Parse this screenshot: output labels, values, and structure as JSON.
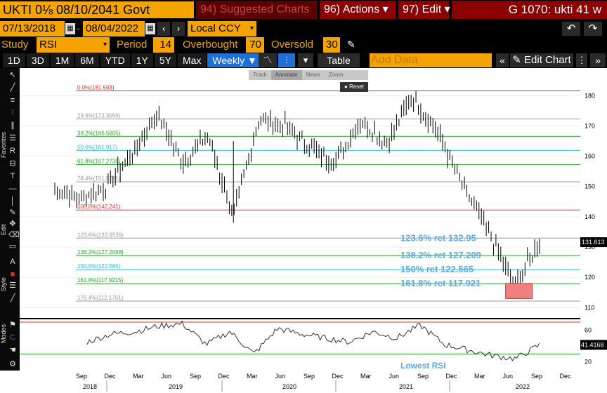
{
  "header": {
    "security": "UKTI 0⅛ 08/10/2041 Govt",
    "suggested_num": "94)",
    "suggested_label": "Suggested Charts",
    "actions_num": "96)",
    "actions_label": "Actions ▾",
    "edit_num": "97)",
    "edit_label": "Edit ▾",
    "chart_id": "G 1070: ukti 41 w"
  },
  "dates": {
    "start": "07/13/2018",
    "end": "08/04/2022",
    "currency": "Local CCY"
  },
  "study": {
    "label": "Study",
    "value": "RSI",
    "period_label": "Period",
    "period": "14",
    "overbought_label": "Overbought",
    "overbought": "70",
    "oversold_label": "Oversold",
    "oversold": "30"
  },
  "timeframes": [
    "1D",
    "3D",
    "1M",
    "6M",
    "YTD",
    "1Y",
    "5Y",
    "Max"
  ],
  "frequency": "Weekly ▼",
  "table_label": "Table",
  "add_data_placeholder": "Add Data",
  "edit_chart_label": "Edit Chart",
  "chart_toolbar": {
    "track": "Track",
    "annotate": "Annotate",
    "news": "News",
    "zoom": "Zoom",
    "reset": "Reset"
  },
  "left_toolbar": {
    "favorites": "Favorites",
    "edit": "Edit",
    "style": "Style",
    "modes": "Modes"
  },
  "fib_labels": [
    {
      "text": "0.0%(181.593)",
      "value": 181.593,
      "color": "#e03030"
    },
    {
      "text": "23.6%(172.3059)",
      "value": 172.3059,
      "color": "#999999"
    },
    {
      "text": "38.2%(166.5605)",
      "value": 166.5605,
      "color": "#22aa22"
    },
    {
      "text": "50.0%(161.917)",
      "value": 161.917,
      "color": "#22bbdd"
    },
    {
      "text": "61.8%(157.2735)",
      "value": 157.2735,
      "color": "#22aa22"
    },
    {
      "text": "76.4%(151.5281)",
      "value": 151.5281,
      "color": "#999999"
    },
    {
      "text": "100.0%(142.241)",
      "value": 142.241,
      "color": "#e03030"
    },
    {
      "text": "123.6%(132.9539)",
      "value": 132.9539,
      "color": "#999999"
    },
    {
      "text": "138.2%(127.2088)",
      "value": 127.2088,
      "color": "#22aa22"
    },
    {
      "text": "150.0%(122.565)",
      "value": 122.565,
      "color": "#22bbdd"
    },
    {
      "text": "161.8%(117.9215)",
      "value": 117.9215,
      "color": "#22aa22"
    },
    {
      "text": "176.4%(112.1761)",
      "value": 112.1761,
      "color": "#999999"
    }
  ],
  "annotations": [
    {
      "text": "123.6% ret 132.95",
      "value": 132.95
    },
    {
      "text": "138.2% ret 127.209",
      "value": 127.209
    },
    {
      "text": "150% ret 122.565",
      "value": 122.565
    },
    {
      "text": "161.8% ret 117.921",
      "value": 117.921
    }
  ],
  "lowest_rsi_label": "Lowest RSI",
  "price_axis": {
    "ticks": [
      "180",
      "170",
      "160",
      "150",
      "140",
      "130",
      "120",
      "110"
    ],
    "last": "131.613"
  },
  "rsi_axis": {
    "ticks": [
      "60",
      "40",
      "20"
    ],
    "last": "41.4168"
  },
  "x_months": [
    "Sep",
    "Dec",
    "Mar",
    "Jun",
    "Sep",
    "Dec",
    "Mar",
    "Jun",
    "Sep",
    "Dec",
    "Mar",
    "Jun",
    "Sep",
    "Dec",
    "Mar",
    "Jun",
    "Sep",
    "Dec"
  ],
  "x_years": [
    "2018",
    "2019",
    "2020",
    "2021",
    "2022"
  ],
  "chart_data": {
    "type": "line",
    "ylim": [
      108,
      184
    ],
    "x": [
      "2018-07",
      "2018-10",
      "2019-01",
      "2019-04",
      "2019-07",
      "2019-10",
      "2020-01",
      "2020-03",
      "2020-06",
      "2020-09",
      "2020-12",
      "2021-03",
      "2021-06",
      "2021-09",
      "2021-12",
      "2022-01",
      "2022-03",
      "2022-05",
      "2022-06",
      "2022-07"
    ],
    "price_values": [
      149,
      146,
      150,
      160,
      174,
      158,
      167,
      140,
      172,
      170,
      163,
      158,
      172,
      164,
      180,
      168,
      150,
      135,
      117,
      131.6
    ],
    "rsi_values": [
      45,
      55,
      58,
      65,
      68,
      42,
      58,
      30,
      62,
      55,
      50,
      45,
      58,
      50,
      66,
      42,
      35,
      28,
      24,
      41.4
    ]
  }
}
